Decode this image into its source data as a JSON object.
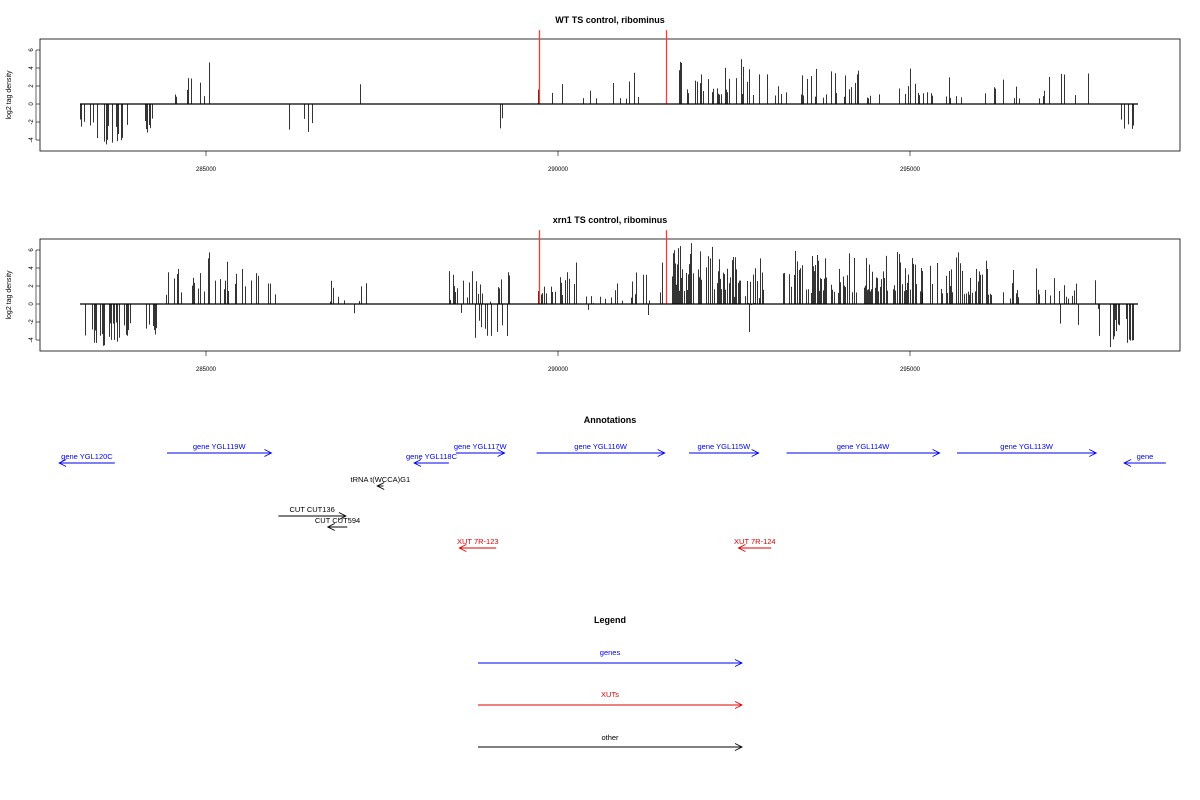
{
  "colors": {
    "gene": "#0000ee",
    "xut": "#dd0000",
    "other": "#000000",
    "marker": "#ff3b30"
  },
  "chart_data": [
    {
      "type": "bar",
      "title": "WT TS control, ribominus",
      "ylabel": "log2 tag density",
      "xlim": [
        283200,
        298400
      ],
      "ylim": [
        -6.5,
        8.8
      ],
      "x_ticks": [
        "285000",
        "290000",
        "295000"
      ],
      "y_ticks": [
        "6",
        "4",
        "2",
        "0",
        "-2",
        "-4"
      ],
      "markers": [
        289800,
        291620
      ],
      "marker_height": 8.2,
      "profile": [
        {
          "from": 283200,
          "to": 283400,
          "min": -2.6,
          "max": -1.6,
          "density": 0.35
        },
        {
          "from": 283400,
          "to": 283800,
          "min": -4.6,
          "max": -2.2,
          "density": 0.4
        },
        {
          "from": 283800,
          "to": 284000,
          "min": -4.2,
          "max": -2.0,
          "density": 0.3
        },
        {
          "from": 284000,
          "to": 284250,
          "min": -3.2,
          "max": -1.4,
          "density": 0.25
        },
        {
          "from": 284500,
          "to": 285000,
          "min": 0.8,
          "max": 3.2,
          "density": 0.12
        },
        {
          "from": 285000,
          "to": 285600,
          "min": 1.0,
          "max": 5.4,
          "density": 0.12
        },
        {
          "from": 286100,
          "to": 286600,
          "min": -3.2,
          "max": -0.8,
          "density": 0.06
        },
        {
          "from": 286800,
          "to": 287400,
          "min": -2.2,
          "max": 1.6,
          "density": 0.05
        },
        {
          "from": 288500,
          "to": 289000,
          "min": 0.8,
          "max": 2.2,
          "density": 0.06
        },
        {
          "from": 289000,
          "to": 289300,
          "min": -2.8,
          "max": -0.6,
          "density": 0.05
        },
        {
          "from": 289700,
          "to": 290000,
          "min": 0.6,
          "max": 2.0,
          "density": 0.08
        },
        {
          "from": 290000,
          "to": 291400,
          "min": 0.6,
          "max": 3.5,
          "density": 0.08
        },
        {
          "from": 291700,
          "to": 292000,
          "min": 1.2,
          "max": 5.6,
          "density": 0.45
        },
        {
          "from": 292000,
          "to": 293000,
          "min": 1.0,
          "max": 5.0,
          "density": 0.4
        },
        {
          "from": 293000,
          "to": 294300,
          "min": 0.6,
          "max": 4.0,
          "density": 0.2
        },
        {
          "from": 294300,
          "to": 295200,
          "min": 0.6,
          "max": 4.2,
          "density": 0.2
        },
        {
          "from": 295200,
          "to": 296200,
          "min": 0.6,
          "max": 3.2,
          "density": 0.12
        },
        {
          "from": 296200,
          "to": 297800,
          "min": 0.6,
          "max": 3.8,
          "density": 0.06
        },
        {
          "from": 298150,
          "to": 298350,
          "min": -2.8,
          "max": -1.2,
          "density": 0.4
        }
      ]
    },
    {
      "type": "bar",
      "title": "xrn1 TS control, ribominus",
      "ylabel": "log2 tag density",
      "xlim": [
        283200,
        298400
      ],
      "ylim": [
        -6.5,
        8.8
      ],
      "x_ticks": [
        "285000",
        "290000",
        "295000"
      ],
      "y_ticks": [
        "6",
        "4",
        "2",
        "0",
        "-2",
        "-4"
      ],
      "markers": [
        289800,
        291620
      ],
      "marker_height": 8.2,
      "profile": [
        {
          "from": 283200,
          "to": 283600,
          "min": -4.8,
          "max": -2.4,
          "density": 0.45
        },
        {
          "from": 283600,
          "to": 284000,
          "min": -4.2,
          "max": -2.0,
          "density": 0.45
        },
        {
          "from": 284000,
          "to": 284300,
          "min": -3.4,
          "max": -1.6,
          "density": 0.3
        },
        {
          "from": 284400,
          "to": 284800,
          "min": 1.0,
          "max": 4.0,
          "density": 0.3
        },
        {
          "from": 284800,
          "to": 285300,
          "min": 1.2,
          "max": 6.5,
          "density": 0.4
        },
        {
          "from": 285300,
          "to": 285800,
          "min": 1.0,
          "max": 4.8,
          "density": 0.35
        },
        {
          "from": 285900,
          "to": 286800,
          "min": -2.4,
          "max": 1.0,
          "density": 0.08
        },
        {
          "from": 286800,
          "to": 287500,
          "min": -2.6,
          "max": 1.0,
          "density": 0.06
        },
        {
          "from": 288500,
          "to": 289000,
          "min": -2.6,
          "max": 4.0,
          "density": 0.4
        },
        {
          "from": 289000,
          "to": 289400,
          "min": -3.8,
          "max": 4.8,
          "density": 0.4
        },
        {
          "from": 289700,
          "to": 290300,
          "min": 1.0,
          "max": 4.0,
          "density": 0.3
        },
        {
          "from": 290300,
          "to": 291600,
          "min": -1.4,
          "max": 5.0,
          "density": 0.25
        },
        {
          "from": 291700,
          "to": 292600,
          "min": 1.4,
          "max": 6.8,
          "density": 0.7
        },
        {
          "from": 292600,
          "to": 293100,
          "min": -2.6,
          "max": 6.0,
          "density": 0.5
        },
        {
          "from": 293300,
          "to": 294400,
          "min": 1.2,
          "max": 6.0,
          "density": 0.55
        },
        {
          "from": 294400,
          "to": 295300,
          "min": 1.4,
          "max": 6.2,
          "density": 0.55
        },
        {
          "from": 295300,
          "to": 296300,
          "min": 1.0,
          "max": 5.8,
          "density": 0.5
        },
        {
          "from": 296300,
          "to": 297400,
          "min": -1.6,
          "max": 4.0,
          "density": 0.25
        },
        {
          "from": 297400,
          "to": 298000,
          "min": -1.2,
          "max": 3.8,
          "density": 0.25
        },
        {
          "from": 298000,
          "to": 298350,
          "min": -4.8,
          "max": -1.6,
          "density": 0.5
        }
      ]
    }
  ],
  "annotations": {
    "title": "Annotations",
    "features": [
      {
        "label": "gene YGL120C",
        "category": "gene",
        "row": 1,
        "start": 283700,
        "end": 282900
      },
      {
        "label": "gene YGL119W",
        "category": "gene",
        "row": 0,
        "start": 284450,
        "end": 285950
      },
      {
        "label": "gene YGL118C",
        "category": "gene",
        "row": 1,
        "start": 288500,
        "end": 288000
      },
      {
        "label": "gene YGL117W",
        "category": "gene",
        "row": 0,
        "start": 288600,
        "end": 289300
      },
      {
        "label": "gene YGL116W",
        "category": "gene",
        "row": 0,
        "start": 289760,
        "end": 291600
      },
      {
        "label": "gene YGL115W",
        "category": "gene",
        "row": 0,
        "start": 291950,
        "end": 292950
      },
      {
        "label": "gene YGL114W",
        "category": "gene",
        "row": 0,
        "start": 293350,
        "end": 295550
      },
      {
        "label": "gene YGL113W",
        "category": "gene",
        "row": 0,
        "start": 295800,
        "end": 297800
      },
      {
        "label": "gene",
        "category": "gene",
        "row": 1,
        "start": 298800,
        "end": 298200
      },
      {
        "label": "tRNA t(WCCA)G1",
        "category": "other",
        "row": 2,
        "start": 287560,
        "end": 287470
      },
      {
        "label": "CUT CUT136",
        "category": "other",
        "row": 3,
        "start": 286050,
        "end": 287020
      },
      {
        "label": "CUT CUT594",
        "category": "other",
        "row": 4,
        "start": 287040,
        "end": 286760
      },
      {
        "label": "XUT 7R-123",
        "category": "xut",
        "row": 5,
        "start": 289180,
        "end": 288650
      },
      {
        "label": "XUT 7R-124",
        "category": "xut",
        "row": 5,
        "start": 293130,
        "end": 292660
      }
    ]
  },
  "legend": {
    "title": "Legend",
    "items": [
      {
        "label": "genes",
        "category": "gene"
      },
      {
        "label": "XUTs",
        "category": "xut"
      },
      {
        "label": "other",
        "category": "other"
      }
    ]
  }
}
